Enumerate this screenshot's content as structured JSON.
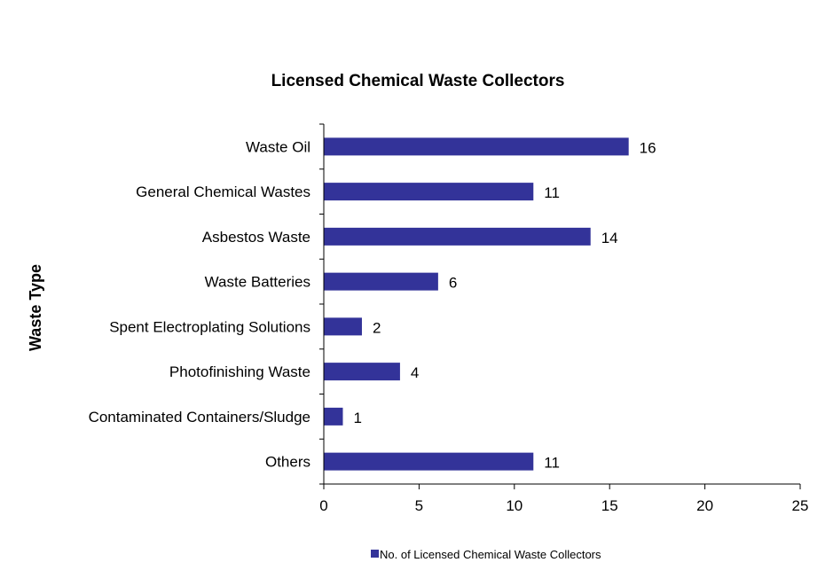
{
  "chart_data": {
    "type": "bar",
    "orientation": "horizontal",
    "title": "Licensed Chemical Waste Collectors",
    "xlabel": "",
    "ylabel": "Waste Type",
    "categories": [
      "Waste Oil",
      "General Chemical Wastes",
      "Asbestos Waste",
      "Waste Batteries",
      "Spent Electroplating Solutions",
      "Photofinishing Waste",
      "Contaminated Containers/Sludge",
      "Others"
    ],
    "series": [
      {
        "name": "No. of Licensed Chemical Waste Collectors",
        "color": "#333399",
        "values": [
          16,
          11,
          14,
          6,
          2,
          4,
          1,
          11
        ]
      }
    ],
    "xlim": [
      0,
      25
    ],
    "xticks": [
      0,
      5,
      10,
      15,
      20,
      25
    ],
    "grid": false,
    "legend": "bottom",
    "data_labels": true
  }
}
